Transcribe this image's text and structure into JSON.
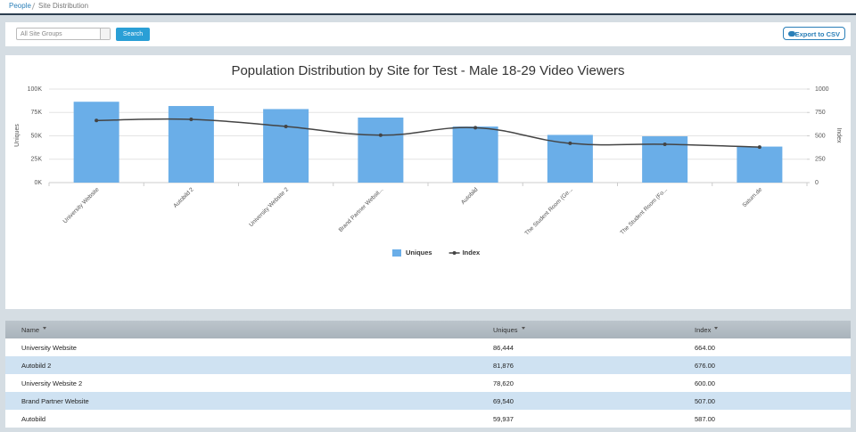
{
  "breadcrumb": [
    "People",
    "Site Distribution"
  ],
  "toolbar": {
    "select": "All Site Groups",
    "search": "Search",
    "export": "Export to CSV"
  },
  "chart_data": {
    "type": "bar",
    "title": "Population Distribution by Site for Test - Male 18-29 Video Viewers",
    "y_label": "Uniques",
    "y2_label": "Index",
    "categories": [
      "University Website",
      "Autobild 2",
      "University Website 2",
      "Brand Partner Websit...",
      "Autobild",
      "The Student Room (Ge...",
      "The Student Room (Fo...",
      "Saturn.de"
    ],
    "series": [
      {
        "name": "Uniques",
        "color": "#6aaee8",
        "values": [
          86444,
          81876,
          78620,
          69540,
          59937,
          51000,
          49500,
          38500
        ]
      },
      {
        "name": "Index",
        "color": "#444444",
        "type": "line",
        "axis": "y2",
        "values": [
          664,
          676,
          600,
          507,
          587,
          420,
          410,
          380
        ]
      }
    ],
    "ylim": [
      0,
      100000
    ],
    "yticks": [
      {
        "value": 0,
        "label": "0K"
      },
      {
        "value": 25000,
        "label": "25K"
      },
      {
        "value": 50000,
        "label": "50K"
      },
      {
        "value": 75000,
        "label": "75K"
      },
      {
        "value": 100000,
        "label": "100K"
      }
    ],
    "y2lim": [
      0,
      1000
    ],
    "y2ticks": [
      0,
      250,
      500,
      750,
      1000
    ],
    "grid": true,
    "legend": "bottom"
  },
  "table": {
    "columns": [
      "Name",
      "Uniques",
      "Index"
    ],
    "rows": [
      [
        "University Website",
        "86,444",
        "664.00"
      ],
      [
        "Autobild 2",
        "81,876",
        "676.00"
      ],
      [
        "University Website 2",
        "78,620",
        "600.00"
      ],
      [
        "Brand Partner Website",
        "69,540",
        "507.00"
      ],
      [
        "Autobild",
        "59,937",
        "587.00"
      ]
    ]
  }
}
